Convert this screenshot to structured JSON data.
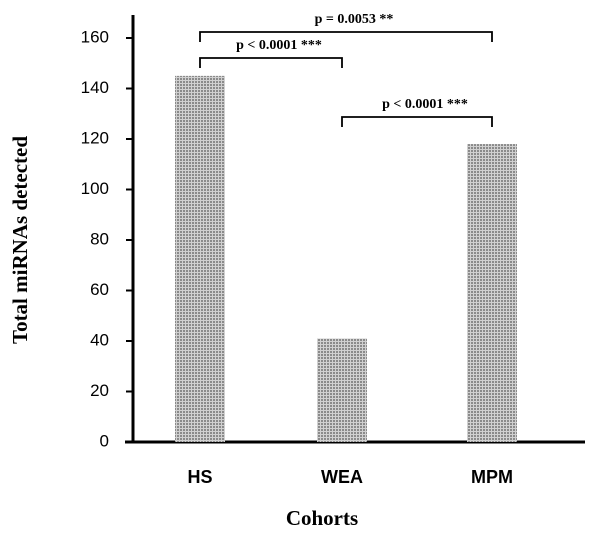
{
  "chart_data": {
    "type": "bar",
    "x_label": "Cohorts",
    "y_label": "Total miRNAs detected",
    "categories": [
      "HS",
      "WEA",
      "MPM"
    ],
    "values": [
      145,
      41,
      118
    ],
    "color": "#8a8a8a",
    "ylim": [
      0,
      160
    ],
    "yticks": [
      0,
      20,
      40,
      60,
      80,
      100,
      120,
      140,
      160
    ],
    "grid": false,
    "annotations": [
      "p = 0.0053 **",
      "p < 0.0001 ***",
      "p < 0.0001 ***"
    ]
  }
}
